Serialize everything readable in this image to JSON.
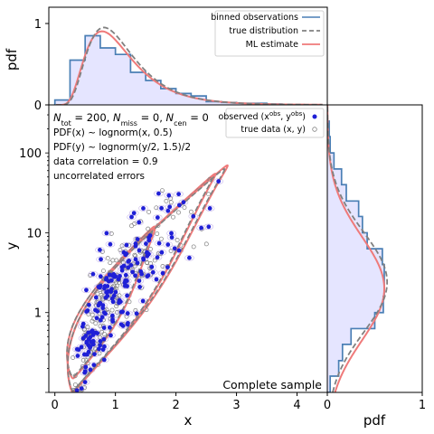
{
  "chart_data": [
    {
      "type": "histogram",
      "panel": "top-marginal",
      "ylabel": "pdf",
      "xlim": [
        -0.1,
        4.5
      ],
      "ylim": [
        0,
        1.2
      ],
      "yticks": [
        {
          "v": 0,
          "label": "0"
        },
        {
          "v": 1,
          "label": "1"
        }
      ],
      "bin_edges": [
        0.0,
        0.25,
        0.5,
        0.75,
        1.0,
        1.25,
        1.5,
        1.75,
        2.0,
        2.25,
        2.5,
        2.75,
        3.0,
        3.25,
        3.5,
        3.75
      ],
      "bin_values": [
        0.06,
        0.55,
        0.85,
        0.7,
        0.62,
        0.4,
        0.3,
        0.2,
        0.14,
        0.11,
        0.04,
        0.03,
        0.02,
        0.02,
        0.01
      ],
      "legend": {
        "position": "top-right",
        "entries": [
          {
            "label": "binned observations",
            "color": "#4a7fb5",
            "style": "solid"
          },
          {
            "label": "true distribution",
            "color": "#808080",
            "style": "dashed"
          },
          {
            "label": "ML estimate",
            "color": "#ef7a7a",
            "style": "solid"
          }
        ]
      }
    },
    {
      "type": "scatter",
      "panel": "main",
      "xlabel": "x",
      "ylabel": "y",
      "xlim": [
        -0.1,
        4.5
      ],
      "ylim": [
        0.1,
        400
      ],
      "yscale": "log",
      "xticks": [
        {
          "v": 0,
          "label": "0"
        },
        {
          "v": 1,
          "label": "1"
        },
        {
          "v": 2,
          "label": "2"
        },
        {
          "v": 3,
          "label": "3"
        },
        {
          "v": 4,
          "label": "4"
        }
      ],
      "yticks": [
        {
          "v": 1,
          "label": "1"
        },
        {
          "v": 10,
          "label": "10"
        },
        {
          "v": 100,
          "label": "100"
        }
      ],
      "annotation_lines": [
        "PDF(x) ~ lognorm(x, 0.5)",
        "PDF(y) ~ lognorm(y/2, 1.5)/2",
        "data correlation = 0.9",
        "uncorrelated errors"
      ],
      "corner_label": "Complete sample",
      "legend": {
        "position": "top-right",
        "entries": [
          {
            "label": "observed",
            "marker": "filled-circle",
            "color": "#1f1fd6"
          },
          {
            "label": "true data",
            "marker": "open-circle",
            "color": "#808080"
          }
        ]
      },
      "sample_size": 200,
      "x_median": 1.0,
      "y_median": 2.0,
      "correlation": 0.9,
      "contour_levels": [
        {
          "ymin": 0.15,
          "ymax": 12,
          "xmax": 1.8
        },
        {
          "ymin": 0.1,
          "ymax": 55,
          "xmax": 2.8
        },
        {
          "ymin": 0.1,
          "ymax": 70,
          "xmax": 3.0
        }
      ],
      "marker_colors": {
        "observed": "#1f1fd6",
        "true": "#808080",
        "error_ellipse": "#c8b8e8"
      }
    },
    {
      "type": "histogram",
      "panel": "right-marginal",
      "orientation": "horizontal",
      "xlabel": "pdf",
      "xlim": [
        0,
        1
      ],
      "ylim": [
        0.1,
        400
      ],
      "yscale": "log",
      "xticks": [
        {
          "v": 0,
          "label": "0"
        },
        {
          "v": 1,
          "label": "1"
        }
      ],
      "bin_edges": [
        0.1,
        0.16,
        0.25,
        0.4,
        0.63,
        1.0,
        1.6,
        2.5,
        4.0,
        6.3,
        10,
        16,
        25,
        40,
        63,
        100,
        160,
        250
      ],
      "bin_values": [
        0.03,
        0.12,
        0.16,
        0.25,
        0.5,
        0.59,
        0.6,
        0.6,
        0.58,
        0.42,
        0.37,
        0.33,
        0.2,
        0.15,
        0.07,
        0.03,
        0.02
      ],
      "style": {
        "fill": "#e5e5ff",
        "hist_color": "#4a7fb5",
        "true_color": "#808080",
        "ml_color": "#ef7a7a"
      }
    }
  ],
  "labels": {
    "top_ylabel": "pdf",
    "main_xlabel": "x",
    "main_ylabel": "y",
    "right_xlabel": "pdf",
    "n_tot_prefix": "N",
    "n_tot_sub": "tot",
    "n_tot_value": " = 200, ",
    "n_miss_prefix": "N",
    "n_miss_sub": "miss",
    "n_miss_value": " = 0, ",
    "n_cen_prefix": "N",
    "n_cen_sub": "cen",
    "n_cen_value": " = 0",
    "legend_obs_prefix": "observed (x",
    "legend_obs_sup1": "obs",
    "legend_obs_mid": ", y",
    "legend_obs_sup2": "obs",
    "legend_obs_suffix": ")",
    "legend_true_text": "true data (x, y)"
  }
}
